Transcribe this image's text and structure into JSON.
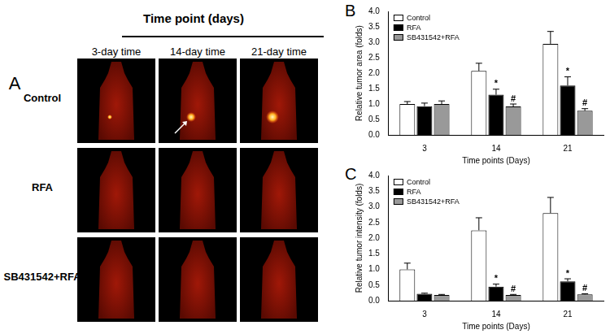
{
  "panel_a": {
    "label": "A",
    "header": "Time point (days)",
    "columns": [
      "3-day time",
      "14-day time",
      "21-day time"
    ],
    "rows": [
      "Control",
      "RFA",
      "SB431542+RFA"
    ]
  },
  "chart_data": [
    {
      "panel": "B",
      "type": "bar",
      "x_label": "Time points (Days)",
      "y_label": "Relative tumor area (folds)",
      "categories": [
        "3",
        "14",
        "21"
      ],
      "series": [
        {
          "name": "Control",
          "color": "#ffffff",
          "values": [
            1.0,
            2.07,
            2.95
          ],
          "errors": [
            0.08,
            0.25,
            0.4
          ]
        },
        {
          "name": "RFA",
          "color": "#000000",
          "values": [
            0.93,
            1.3,
            1.6
          ],
          "errors": [
            0.1,
            0.18,
            0.28
          ]
        },
        {
          "name": "SB431542+RFA",
          "color": "#999999",
          "values": [
            1.0,
            0.92,
            0.78
          ],
          "errors": [
            0.1,
            0.08,
            0.07
          ]
        }
      ],
      "annotations": [
        {
          "text": "*",
          "series": "RFA",
          "category": "14"
        },
        {
          "text": "#",
          "series": "SB431542+RFA",
          "category": "14"
        },
        {
          "text": "*",
          "series": "RFA",
          "category": "21"
        },
        {
          "text": "#",
          "series": "SB431542+RFA",
          "category": "21"
        }
      ],
      "ylim": [
        0,
        4
      ],
      "yticks": [
        {
          "value": 0,
          "label": "0.0"
        },
        {
          "value": 0.5,
          "label": "0.5"
        },
        {
          "value": 1,
          "label": "1.0"
        },
        {
          "value": 1.5,
          "label": "1.5"
        },
        {
          "value": 2,
          "label": "2.0"
        },
        {
          "value": 2.5,
          "label": "2.5"
        },
        {
          "value": 3,
          "label": "3.0"
        },
        {
          "value": 3.5,
          "label": "3.5"
        },
        {
          "value": 4,
          "label": "4.0"
        }
      ],
      "grid": false,
      "legend": "top-left"
    },
    {
      "panel": "C",
      "type": "bar",
      "x_label": "Time points (Days)",
      "y_label": "Relative tumor intensity (folds)",
      "categories": [
        "3",
        "14",
        "21"
      ],
      "series": [
        {
          "name": "Control",
          "color": "#ffffff",
          "values": [
            1.0,
            2.25,
            2.8
          ],
          "errors": [
            0.2,
            0.4,
            0.5
          ]
        },
        {
          "name": "RFA",
          "color": "#000000",
          "values": [
            0.22,
            0.45,
            0.62
          ],
          "errors": [
            0.02,
            0.08,
            0.08
          ]
        },
        {
          "name": "SB431542+RFA",
          "color": "#999999",
          "values": [
            0.18,
            0.18,
            0.2
          ],
          "errors": [
            0.02,
            0.02,
            0.02
          ]
        }
      ],
      "annotations": [
        {
          "text": "*",
          "series": "RFA",
          "category": "14"
        },
        {
          "text": "#",
          "series": "SB431542+RFA",
          "category": "14"
        },
        {
          "text": "*",
          "series": "RFA",
          "category": "21"
        },
        {
          "text": "#",
          "series": "SB431542+RFA",
          "category": "21"
        }
      ],
      "ylim": [
        0,
        4
      ],
      "yticks": [
        {
          "value": 0,
          "label": "0.0"
        },
        {
          "value": 0.5,
          "label": "0.5"
        },
        {
          "value": 1,
          "label": "1.0"
        },
        {
          "value": 1.5,
          "label": "1.5"
        },
        {
          "value": 2,
          "label": "2.0"
        },
        {
          "value": 2.5,
          "label": "2.5"
        },
        {
          "value": 3,
          "label": "3.0"
        },
        {
          "value": 3.5,
          "label": "3.5"
        },
        {
          "value": 4,
          "label": "4.0"
        }
      ],
      "grid": false,
      "legend": "top-left"
    }
  ]
}
